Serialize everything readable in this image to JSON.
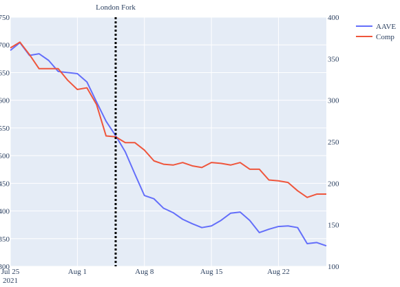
{
  "chart_data": {
    "type": "line",
    "x_start": "2021-07-25",
    "x_tick_labels": [
      "Jul 25",
      "Aug 1",
      "Aug 8",
      "Aug 15",
      "Aug 22"
    ],
    "x_year_label": "2021",
    "x": [
      "2021-07-25",
      "2021-07-26",
      "2021-07-27",
      "2021-07-28",
      "2021-07-29",
      "2021-07-30",
      "2021-07-31",
      "2021-08-01",
      "2021-08-02",
      "2021-08-03",
      "2021-08-04",
      "2021-08-05",
      "2021-08-06",
      "2021-08-07",
      "2021-08-08",
      "2021-08-09",
      "2021-08-10",
      "2021-08-11",
      "2021-08-12",
      "2021-08-13",
      "2021-08-14",
      "2021-08-15",
      "2021-08-16",
      "2021-08-17",
      "2021-08-18",
      "2021-08-19",
      "2021-08-20",
      "2021-08-21",
      "2021-08-22",
      "2021-08-23",
      "2021-08-24",
      "2021-08-25",
      "2021-08-26",
      "2021-08-27"
    ],
    "y_left": {
      "range": [
        300,
        750
      ],
      "ticks": [
        300,
        350,
        400,
        450,
        500,
        550,
        600,
        650,
        700,
        750
      ]
    },
    "y_right": {
      "range": [
        100,
        400
      ],
      "ticks": [
        100,
        150,
        200,
        250,
        300,
        350,
        400
      ]
    },
    "series": [
      {
        "name": "AAVE",
        "axis": "left",
        "color": "#636efa",
        "values": [
          690,
          704,
          681,
          684,
          672,
          652,
          650,
          648,
          633,
          597,
          562,
          536,
          507,
          467,
          428,
          422,
          405,
          397,
          385,
          377,
          370,
          373,
          383,
          396,
          398,
          383,
          361,
          367,
          372,
          373,
          370,
          341,
          343,
          337
        ]
      },
      {
        "name": "Comp",
        "axis": "right",
        "color": "#ef553b",
        "values": [
          363,
          370,
          355,
          338,
          338,
          338,
          324,
          313,
          315,
          295,
          257,
          256,
          249,
          249,
          240,
          227,
          223,
          222,
          225,
          221,
          219,
          225,
          224,
          222,
          225,
          217,
          217,
          204,
          203,
          201,
          191,
          183,
          187,
          187
        ]
      }
    ],
    "annotation": {
      "label": "London Fork",
      "x": "2021-08-05"
    },
    "legend_placement": "top-right",
    "grid": true
  }
}
